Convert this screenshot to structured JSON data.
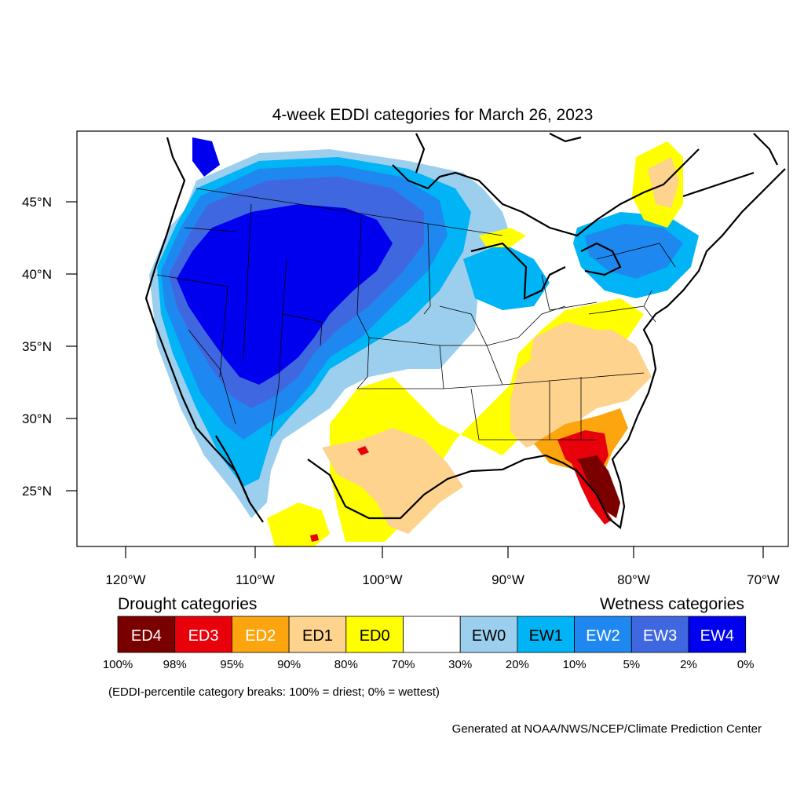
{
  "title": "4-week EDDI categories for March 26, 2023",
  "map": {
    "lat_ticks": [
      "45°N",
      "40°N",
      "35°N",
      "30°N",
      "25°N"
    ],
    "lon_ticks": [
      "120°W",
      "110°W",
      "100°W",
      "90°W",
      "80°W",
      "70°W"
    ]
  },
  "legend": {
    "drought_title": "Drought categories",
    "wetness_title": "Wetness categories",
    "boxes": [
      {
        "label": "ED4",
        "color": "#7a0000",
        "text_color": "#ffffff"
      },
      {
        "label": "ED3",
        "color": "#e8000b",
        "text_color": "#ffffff"
      },
      {
        "label": "ED2",
        "color": "#fda50f",
        "text_color": "#ffffff"
      },
      {
        "label": "ED1",
        "color": "#fdd38e",
        "text_color": "#000000"
      },
      {
        "label": "ED0",
        "color": "#ffff00",
        "text_color": "#000000"
      },
      {
        "label": "",
        "color": "#ffffff",
        "text_color": "#000000"
      },
      {
        "label": "EW0",
        "color": "#9ccfee",
        "text_color": "#000000"
      },
      {
        "label": "EW1",
        "color": "#00b4f5",
        "text_color": "#000000"
      },
      {
        "label": "EW2",
        "color": "#1e88f0",
        "text_color": "#ffffff"
      },
      {
        "label": "EW3",
        "color": "#3f68e0",
        "text_color": "#ffffff"
      },
      {
        "label": "EW4",
        "color": "#0000ee",
        "text_color": "#ffffff"
      }
    ],
    "breaks": [
      "100%",
      "98%",
      "95%",
      "90%",
      "80%",
      "70%",
      "30%",
      "20%",
      "10%",
      "5%",
      "2%",
      "0%"
    ],
    "note": "(EDDI-percentile category breaks: 100% = driest; 0% = wettest)"
  },
  "credit": "Generated at NOAA/NWS/NCEP/Climate Prediction Center"
}
